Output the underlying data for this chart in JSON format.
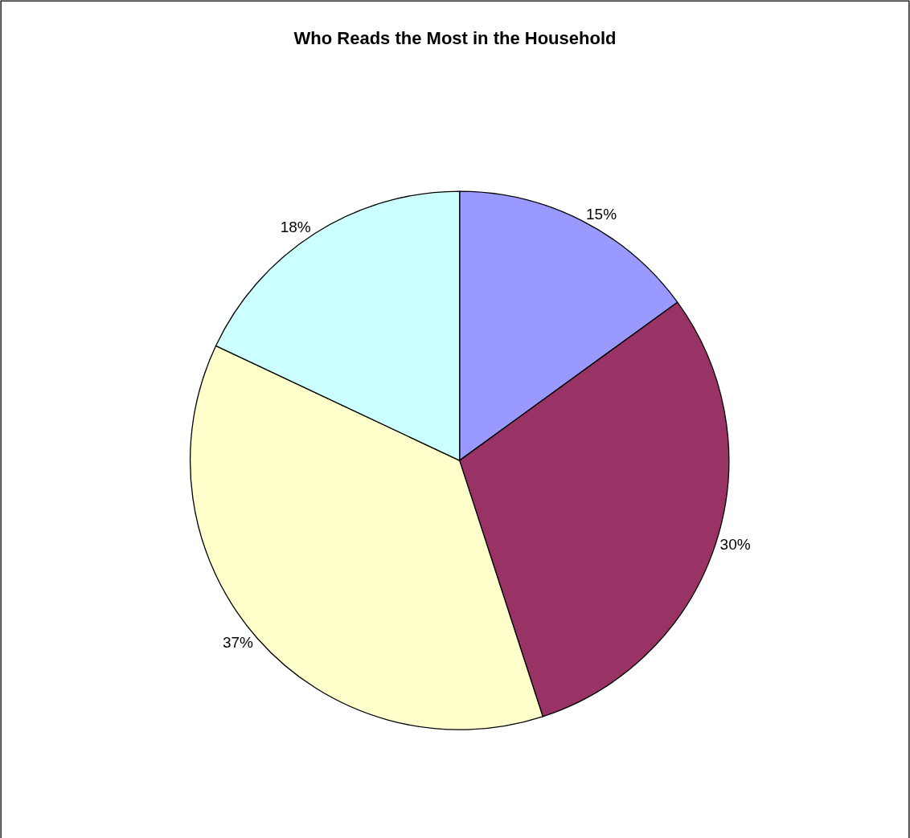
{
  "chart_data": {
    "type": "pie",
    "title": "Who Reads the Most in the Household",
    "categories": [
      null,
      null,
      null,
      null
    ],
    "values": [
      15,
      30,
      37,
      18
    ],
    "colors": [
      "#9999ff",
      "#993366",
      "#ffffcc",
      "#ccffff"
    ],
    "value_labels": [
      "15%",
      "30%",
      "37%",
      "18%"
    ],
    "legend": false
  }
}
